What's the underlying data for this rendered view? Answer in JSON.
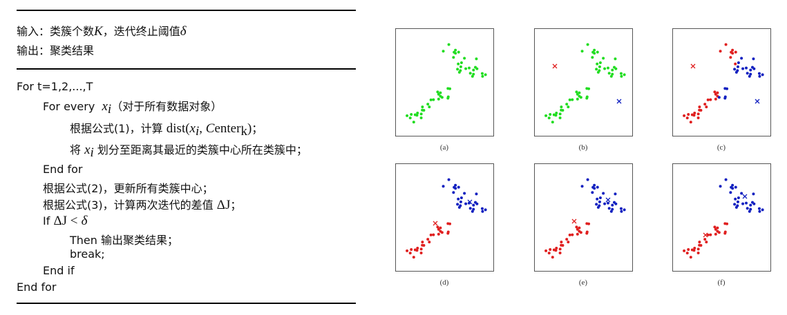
{
  "algorithm": {
    "input": [
      "输入：类簇个数",
      "K",
      "，迭代终止阈值",
      "δ"
    ],
    "output": "输出：聚类结果",
    "body": [
      [
        "For t=1,2,...,T"
      ],
      [
        "For every",
        "x",
        "i",
        "（对于所有数据对象）"
      ],
      [
        "根据公式(1)，计算 ",
        "dist(",
        "x",
        "i",
        ", ",
        "C",
        "enter",
        "k",
        ")",
        "；"
      ],
      [
        "将 ",
        "x",
        "i",
        " 划分至距离其最近的类簇中心所在类簇中；"
      ],
      [
        "End for"
      ],
      [
        "根据公式(2)，更新所有类簇中心；"
      ],
      [
        "根据公式(3)，计算两次迭代的差值 ",
        "ΔJ",
        "；"
      ],
      [
        "If  ",
        "ΔJ <",
        "δ"
      ],
      [
        "Then  输出聚类结果；"
      ],
      [
        "break;"
      ],
      [
        "End if"
      ],
      [
        "End for"
      ]
    ]
  },
  "figure": {
    "captions": [
      "(a)",
      "(b)",
      "(c)",
      "(d)",
      "(e)",
      "(f)"
    ]
  }
}
